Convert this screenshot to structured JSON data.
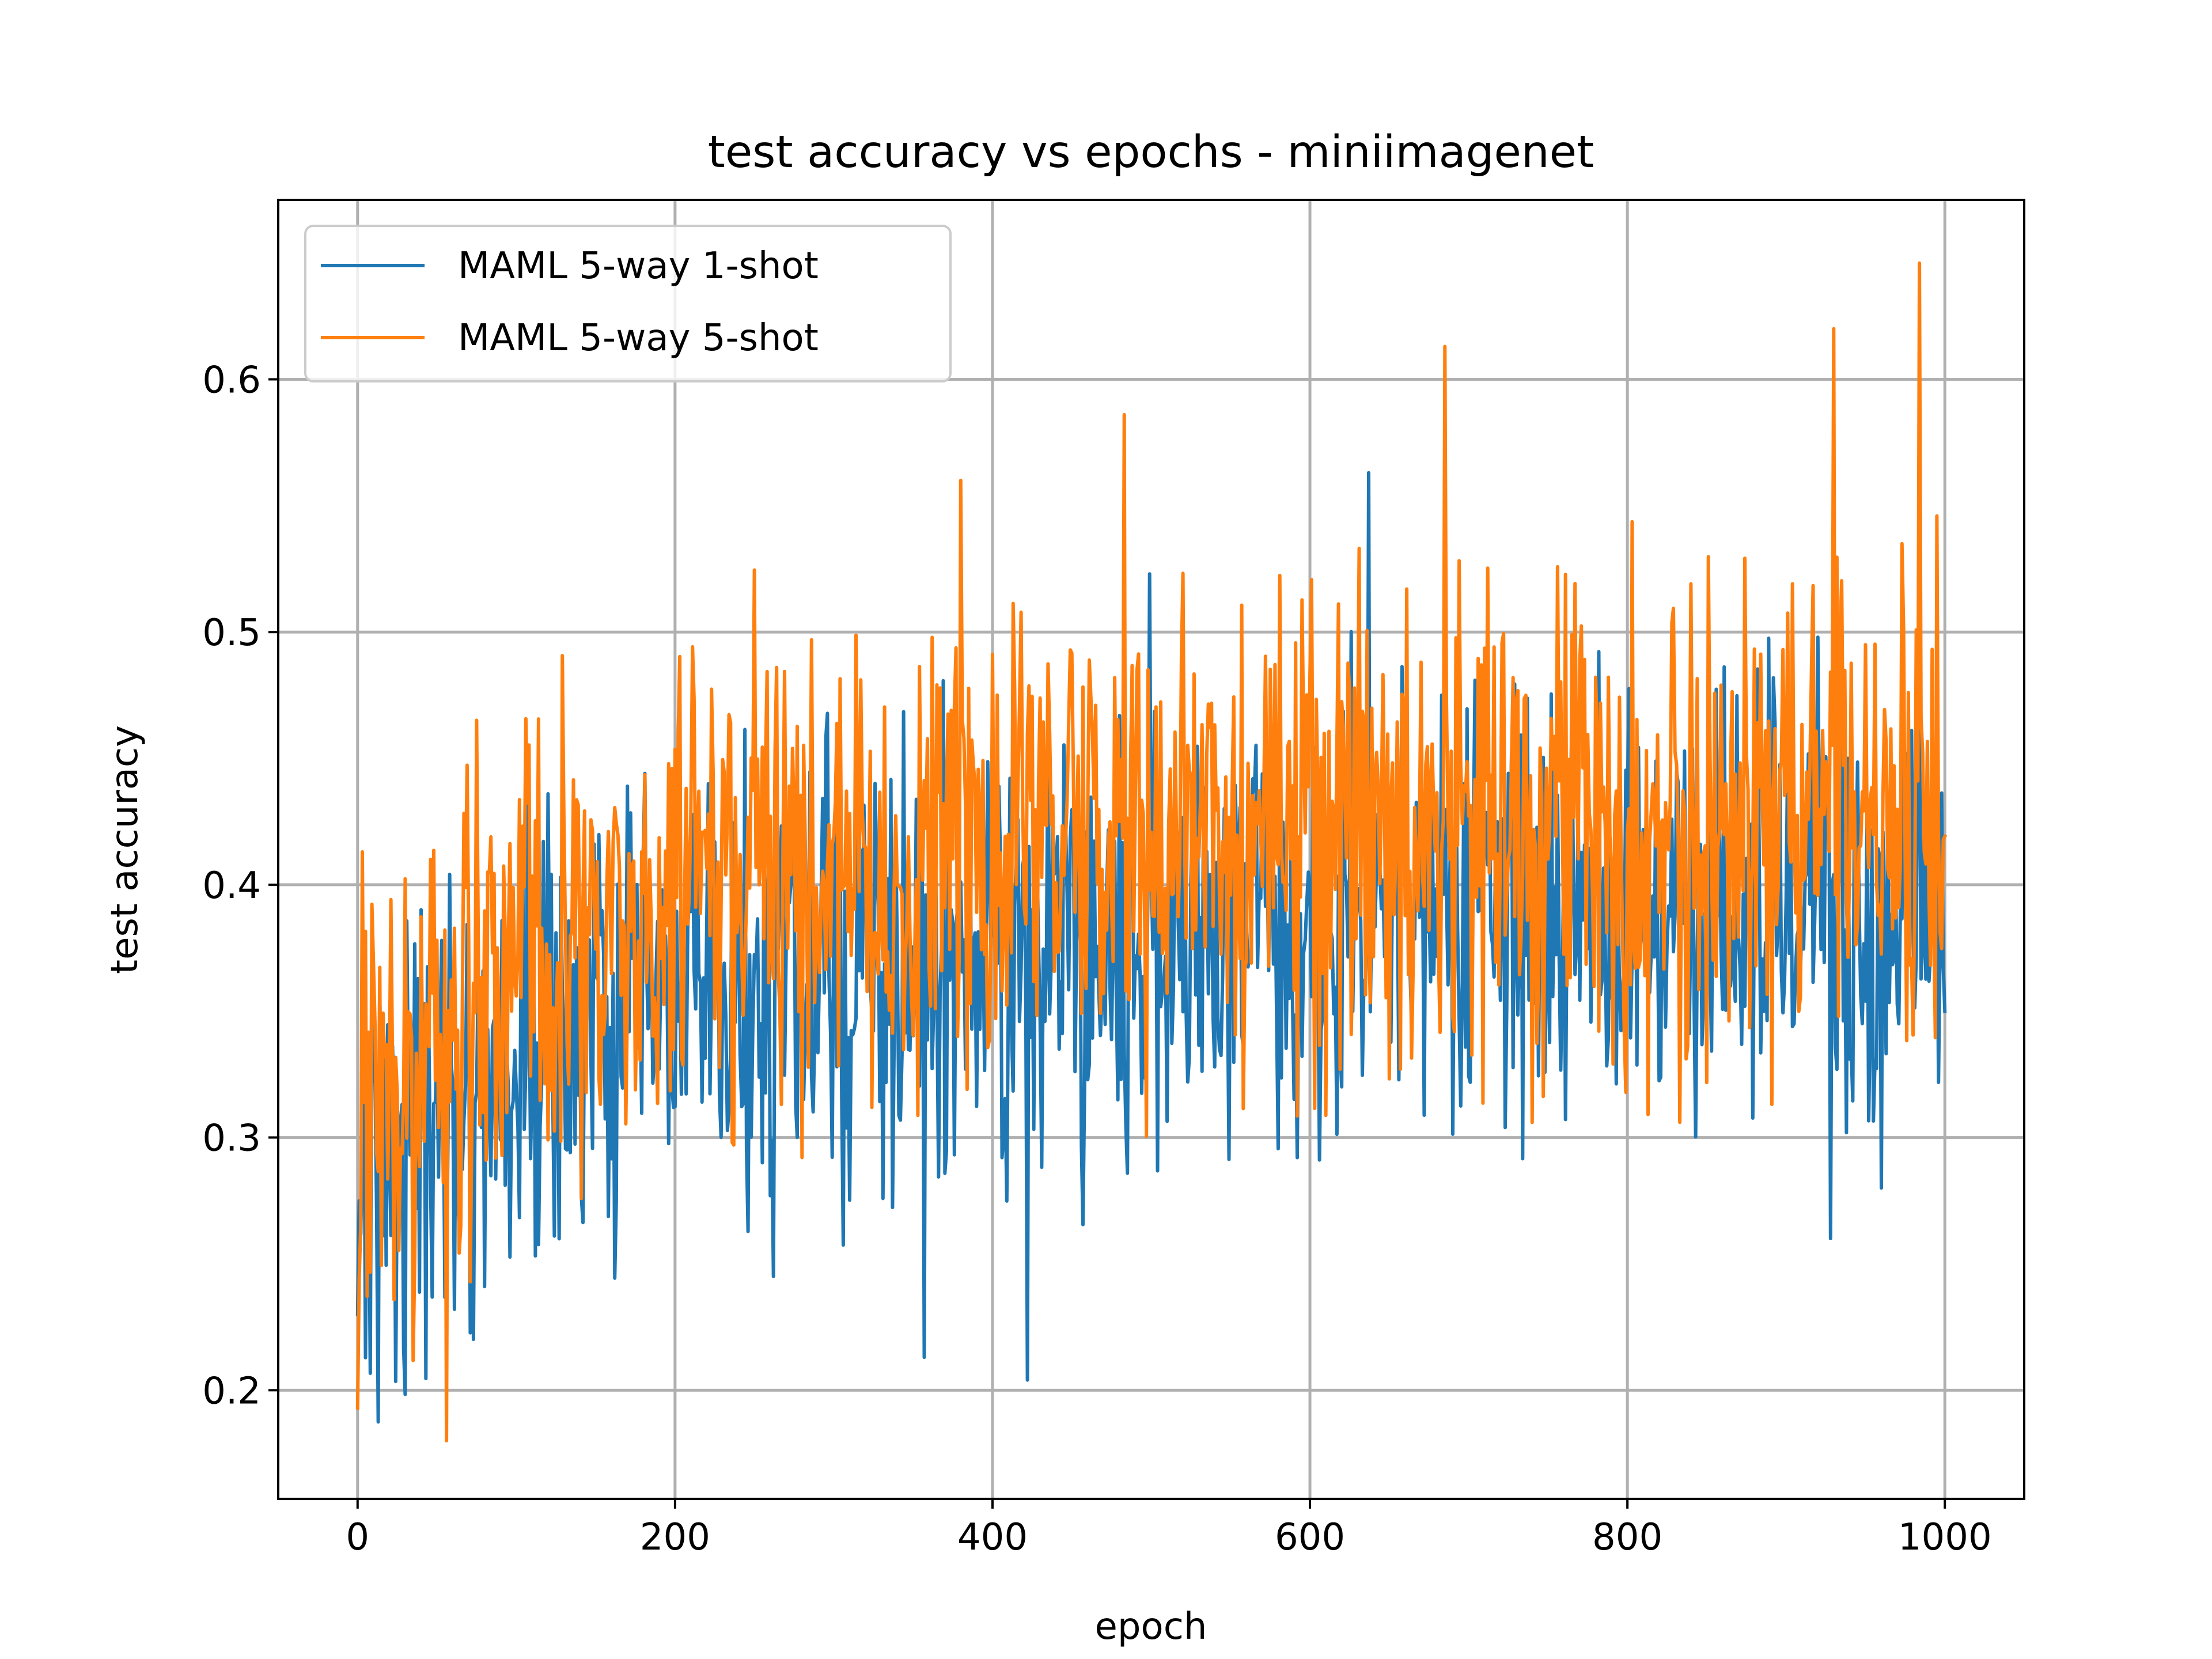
{
  "chart_data": {
    "type": "line",
    "title": "test accuracy vs epochs - miniimagenet",
    "xlabel": "epoch",
    "ylabel": "test accuracy",
    "xlim": [
      -50,
      1050
    ],
    "ylim": [
      0.157,
      0.671
    ],
    "xticks": [
      0,
      200,
      400,
      600,
      800,
      1000
    ],
    "xtick_labels": [
      "0",
      "200",
      "400",
      "600",
      "800",
      "1000"
    ],
    "yticks": [
      0.2,
      0.3,
      0.4,
      0.5,
      0.6
    ],
    "ytick_labels": [
      "0.2",
      "0.3",
      "0.4",
      "0.5",
      "0.6"
    ],
    "grid": true,
    "legend_position": "top-left",
    "x_range": [
      0,
      1000
    ],
    "points_per_series": 1001,
    "series": [
      {
        "name": "MAML 5-way 1-shot",
        "color": "#1f77b4",
        "trend_knots": {
          "x": [
            0,
            50,
            100,
            200,
            300,
            400,
            500,
            600,
            700,
            800,
            900,
            1000
          ],
          "y": [
            0.29,
            0.31,
            0.33,
            0.35,
            0.36,
            0.37,
            0.38,
            0.39,
            0.39,
            0.39,
            0.39,
            0.39
          ]
        },
        "spread": 0.055,
        "highlights": [
          [
            0,
            0.23
          ],
          [
            422,
            0.204
          ],
          [
            357,
            0.213
          ],
          [
            637,
            0.563
          ],
          [
            499,
            0.523
          ],
          [
            928,
            0.26
          ],
          [
            960,
            0.28
          ],
          [
            120,
            0.436
          ]
        ]
      },
      {
        "name": "MAML 5-way 5-shot",
        "color": "#ff7f0e",
        "trend_knots": {
          "x": [
            0,
            50,
            100,
            200,
            300,
            400,
            500,
            600,
            700,
            800,
            900,
            1000
          ],
          "y": [
            0.31,
            0.34,
            0.36,
            0.39,
            0.4,
            0.41,
            0.42,
            0.42,
            0.42,
            0.42,
            0.43,
            0.43
          ]
        },
        "spread": 0.06,
        "highlights": [
          [
            0,
            0.193
          ],
          [
            3,
            0.413
          ],
          [
            56,
            0.18
          ],
          [
            685,
            0.613
          ],
          [
            984,
            0.646
          ],
          [
            930,
            0.62
          ],
          [
            483,
            0.586
          ],
          [
            380,
            0.56
          ]
        ]
      }
    ]
  }
}
